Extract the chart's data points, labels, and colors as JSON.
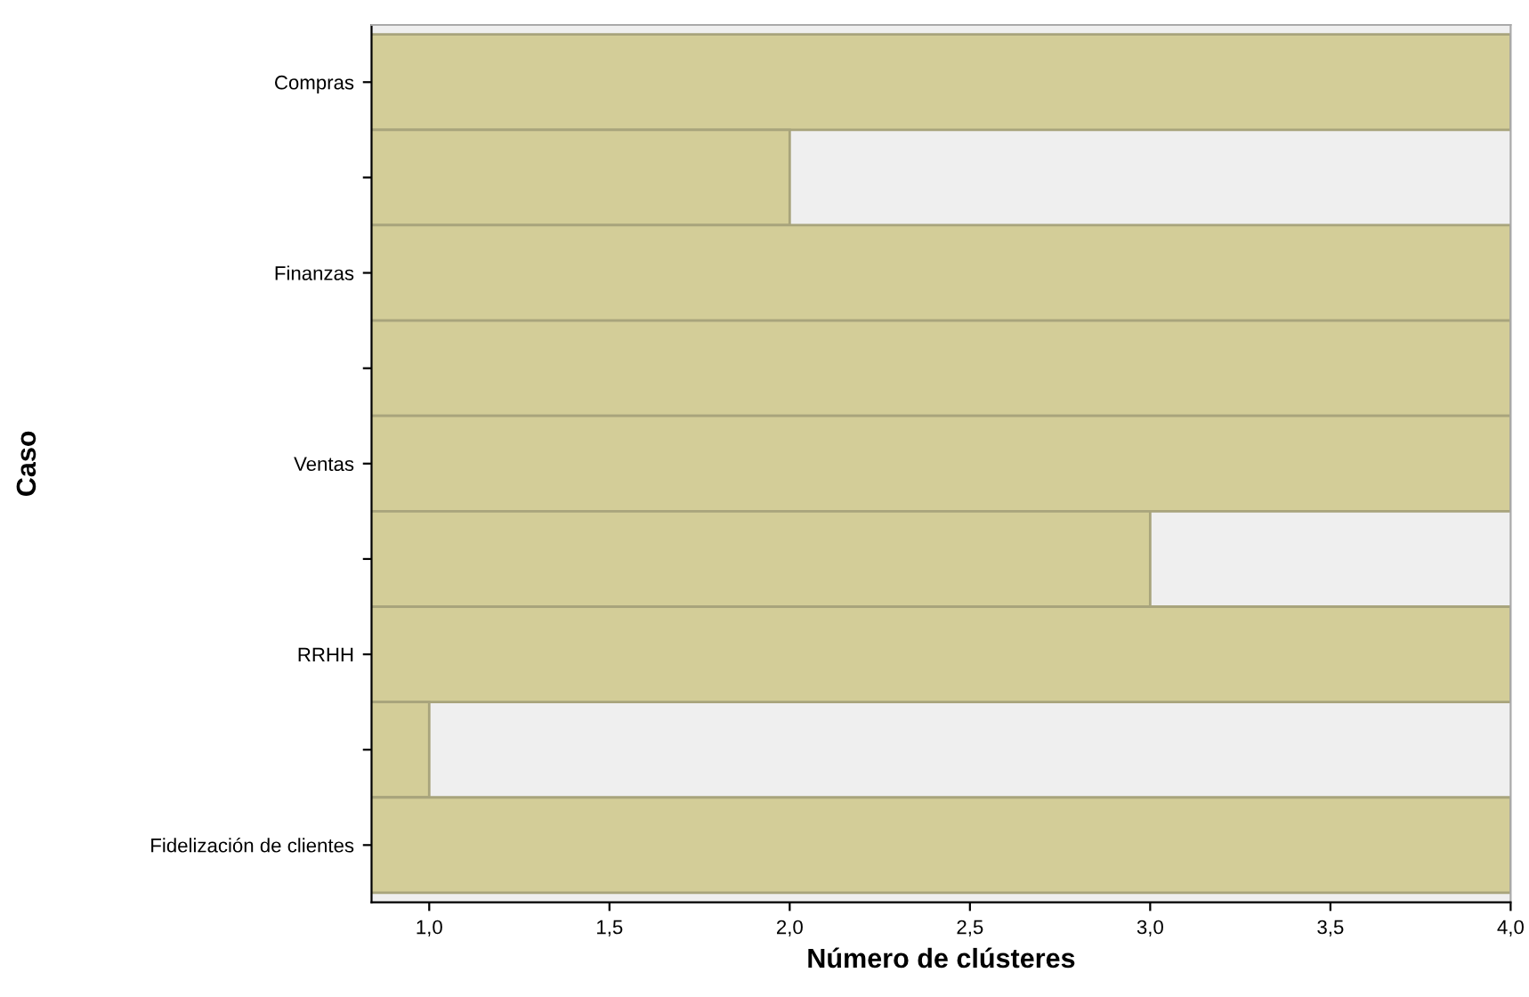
{
  "chart_data": {
    "type": "bar",
    "orientation": "horizontal",
    "xlabel": "Número de clústeres",
    "ylabel": "Caso",
    "categories": [
      "Compras",
      null,
      "Finanzas",
      null,
      "Ventas",
      null,
      "RRHH",
      null,
      "Fidelización de clientes"
    ],
    "values": [
      4,
      2,
      4,
      4,
      4,
      3,
      4,
      1,
      4
    ],
    "color": "#d3cd98",
    "xlim": [
      0.84,
      4
    ],
    "xticks": [
      {
        "value": 1,
        "label": "1,0"
      },
      {
        "value": 1.5,
        "label": "1,5"
      },
      {
        "value": 2,
        "label": "2,0"
      },
      {
        "value": 2.5,
        "label": "2,5"
      },
      {
        "value": 3,
        "label": "3,0"
      },
      {
        "value": 3.5,
        "label": "3,5"
      },
      {
        "value": 4,
        "label": "4,0"
      }
    ],
    "grid": false
  }
}
